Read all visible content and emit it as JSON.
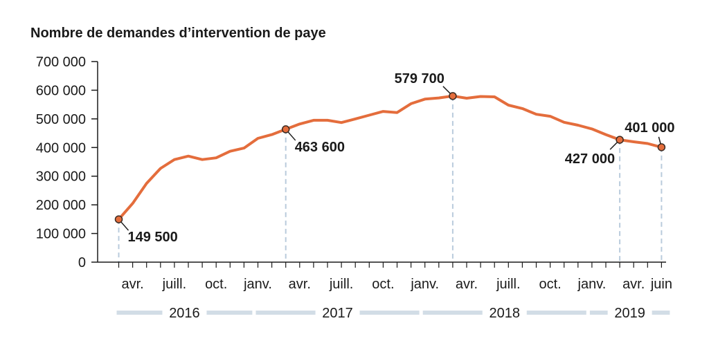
{
  "chart_data": {
    "type": "line",
    "title": "Nombre de demandes d’intervention de paye",
    "xlabel": "",
    "ylabel": "",
    "ylim": [
      0,
      700000
    ],
    "y_ticks": [
      {
        "value": 0,
        "label": "0"
      },
      {
        "value": 100000,
        "label": "100 000"
      },
      {
        "value": 200000,
        "label": "200 000"
      },
      {
        "value": 300000,
        "label": "300 000"
      },
      {
        "value": 400000,
        "label": "400 000"
      },
      {
        "value": 500000,
        "label": "500 000"
      },
      {
        "value": 600000,
        "label": "600 000"
      },
      {
        "value": 700000,
        "label": "700 000"
      }
    ],
    "x_ticks": [
      {
        "month": "2016-04",
        "label": "avr."
      },
      {
        "month": "2016-07",
        "label": "juill."
      },
      {
        "month": "2016-10",
        "label": "oct."
      },
      {
        "month": "2017-01",
        "label": "janv."
      },
      {
        "month": "2017-04",
        "label": "avr."
      },
      {
        "month": "2017-07",
        "label": "juill."
      },
      {
        "month": "2017-10",
        "label": "oct."
      },
      {
        "month": "2018-01",
        "label": "janv."
      },
      {
        "month": "2018-04",
        "label": "avr."
      },
      {
        "month": "2018-07",
        "label": "juill."
      },
      {
        "month": "2018-10",
        "label": "oct."
      },
      {
        "month": "2019-01",
        "label": "janv."
      },
      {
        "month": "2019-04",
        "label": "avr."
      },
      {
        "month": "2019-06",
        "label": "juin"
      }
    ],
    "years": [
      {
        "label": "2016",
        "start": "2016-03",
        "end": "2016-12"
      },
      {
        "label": "2017",
        "start": "2017-01",
        "end": "2017-12"
      },
      {
        "label": "2018",
        "start": "2018-01",
        "end": "2018-12"
      },
      {
        "label": "2019",
        "start": "2019-01",
        "end": "2019-06"
      }
    ],
    "series": [
      {
        "color": "#e46d3c",
        "points": [
          {
            "x": "2016-03",
            "y": 149500
          },
          {
            "x": "2016-04",
            "y": 205000
          },
          {
            "x": "2016-05",
            "y": 275000
          },
          {
            "x": "2016-06",
            "y": 327000
          },
          {
            "x": "2016-07",
            "y": 358000
          },
          {
            "x": "2016-08",
            "y": 370000
          },
          {
            "x": "2016-09",
            "y": 358000
          },
          {
            "x": "2016-10",
            "y": 364000
          },
          {
            "x": "2016-11",
            "y": 387000
          },
          {
            "x": "2016-12",
            "y": 398000
          },
          {
            "x": "2017-01",
            "y": 432000
          },
          {
            "x": "2017-02",
            "y": 445000
          },
          {
            "x": "2017-03",
            "y": 463600
          },
          {
            "x": "2017-04",
            "y": 482000
          },
          {
            "x": "2017-05",
            "y": 495000
          },
          {
            "x": "2017-06",
            "y": 495000
          },
          {
            "x": "2017-07",
            "y": 487000
          },
          {
            "x": "2017-08",
            "y": 500000
          },
          {
            "x": "2017-09",
            "y": 513000
          },
          {
            "x": "2017-10",
            "y": 526000
          },
          {
            "x": "2017-11",
            "y": 522000
          },
          {
            "x": "2017-12",
            "y": 553000
          },
          {
            "x": "2018-01",
            "y": 569000
          },
          {
            "x": "2018-02",
            "y": 573000
          },
          {
            "x": "2018-03",
            "y": 579700
          },
          {
            "x": "2018-04",
            "y": 572000
          },
          {
            "x": "2018-05",
            "y": 578000
          },
          {
            "x": "2018-06",
            "y": 577000
          },
          {
            "x": "2018-07",
            "y": 548000
          },
          {
            "x": "2018-08",
            "y": 536000
          },
          {
            "x": "2018-09",
            "y": 516000
          },
          {
            "x": "2018-10",
            "y": 509000
          },
          {
            "x": "2018-11",
            "y": 488000
          },
          {
            "x": "2018-12",
            "y": 478000
          },
          {
            "x": "2019-01",
            "y": 465000
          },
          {
            "x": "2019-02",
            "y": 445000
          },
          {
            "x": "2019-03",
            "y": 427000
          },
          {
            "x": "2019-04",
            "y": 420000
          },
          {
            "x": "2019-05",
            "y": 414000
          },
          {
            "x": "2019-06",
            "y": 401000
          }
        ]
      }
    ],
    "annotations": [
      {
        "x": "2016-03",
        "y": 149500,
        "label": "149 500",
        "position": "below-right"
      },
      {
        "x": "2017-03",
        "y": 463600,
        "label": "463 600",
        "position": "below-right"
      },
      {
        "x": "2018-03",
        "y": 579700,
        "label": "579 700",
        "position": "above-left"
      },
      {
        "x": "2019-03",
        "y": 427000,
        "label": "427 000",
        "position": "below-left"
      },
      {
        "x": "2019-06",
        "y": 401000,
        "label": "401 000",
        "position": "above"
      }
    ]
  },
  "colors": {
    "line": "#e46d3c",
    "axis": "#1a1a1a",
    "guide": "#b9cbdc",
    "year_band": "#d2dde6"
  }
}
